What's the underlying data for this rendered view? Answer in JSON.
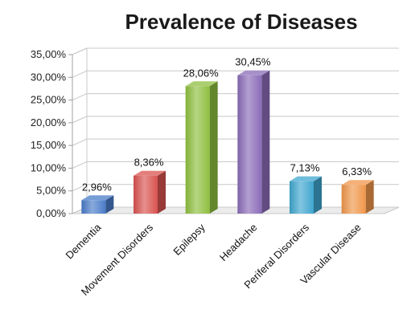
{
  "chart_data": {
    "type": "bar",
    "title": "Prevalence of Diseases",
    "categories": [
      "Dementia",
      "Movement Disorders",
      "Epilepsy",
      "Headache",
      "Periferal Disorders",
      "Vascular Disease"
    ],
    "values": [
      2.96,
      8.36,
      28.06,
      30.45,
      7.13,
      6.33
    ],
    "data_labels": [
      "2,96%",
      "8,36%",
      "28,06%",
      "30,45%",
      "7,13%",
      "6,33%"
    ],
    "yticks": [
      "0,00%",
      "5,00%",
      "10,00%",
      "15,00%",
      "20,00%",
      "25,00%",
      "30,00%",
      "35,00%"
    ],
    "ylim": [
      0,
      35
    ],
    "grid": true,
    "legend": "none",
    "colors": [
      "#4a7cc9",
      "#d9534f",
      "#8fbf3f",
      "#8a6bb8",
      "#3fa6cf",
      "#f0964a"
    ]
  }
}
